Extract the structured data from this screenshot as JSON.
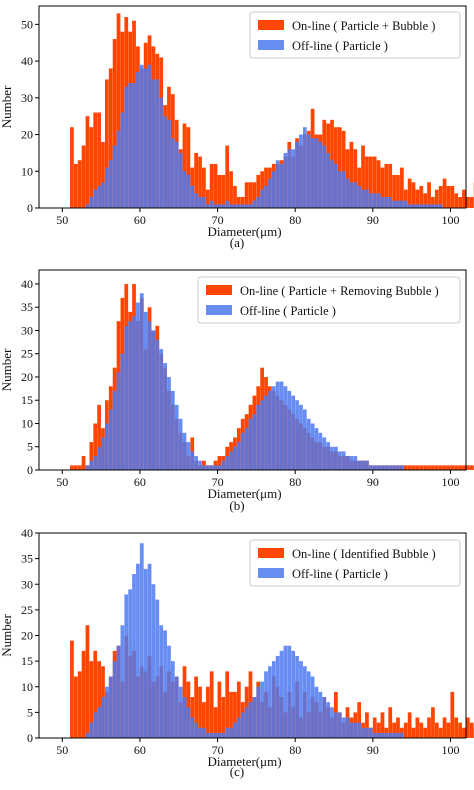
{
  "colors": {
    "online": "#ff4500",
    "offline": "#4d79f0",
    "offline_alpha": 0.85
  },
  "chart_data": [
    {
      "type": "bar",
      "caption": "(a)",
      "xlabel": "Diameter(μm)",
      "ylabel": "Number",
      "xlim": [
        47,
        102
      ],
      "ylim": [
        0,
        55
      ],
      "xticks": [
        50,
        60,
        70,
        80,
        90,
        100
      ],
      "yticks": [
        0,
        10,
        20,
        30,
        40,
        50
      ],
      "bin_start": 51.0,
      "bin_width": 0.5,
      "legend_position": "top-right",
      "series": [
        {
          "name": "On-line ( Particle + Bubble )",
          "color": "#ff4500",
          "values": [
            22,
            12,
            13,
            17,
            25,
            22,
            26,
            26,
            18,
            35,
            38,
            46,
            53,
            48,
            52,
            48,
            51,
            44,
            38,
            45,
            47,
            44,
            42,
            41,
            28,
            33,
            31,
            24,
            16,
            23,
            22,
            11,
            15,
            14,
            11,
            5,
            12,
            12,
            9,
            9,
            17,
            10,
            6,
            3,
            3,
            7,
            7,
            7,
            9,
            10,
            11,
            11,
            12,
            12,
            13,
            14,
            18,
            14,
            19,
            17,
            20,
            21,
            27,
            20,
            20,
            24,
            23,
            24,
            22,
            22,
            21,
            16,
            18,
            16,
            11,
            17,
            14,
            14,
            14,
            13,
            11,
            12,
            12,
            9,
            9,
            11,
            5,
            8,
            7,
            5,
            6,
            4,
            7,
            3,
            5,
            6,
            8,
            6,
            6,
            4,
            3,
            5,
            3,
            3,
            7,
            3,
            3,
            7,
            3,
            3
          ]
        },
        {
          "name": "Off-line ( Particle )",
          "color": "#4d79f0",
          "values": [
            0,
            0,
            0,
            0,
            1,
            3,
            5,
            6,
            7,
            11,
            13,
            17,
            21,
            26,
            33,
            34,
            34,
            37,
            39,
            38,
            39,
            35,
            35,
            30,
            25,
            24,
            19,
            18,
            15,
            10,
            9,
            6,
            4,
            3,
            3,
            1,
            2,
            1,
            1,
            1,
            2,
            1,
            1,
            1,
            1,
            1,
            1,
            2,
            3,
            5,
            6,
            8,
            10,
            13,
            12,
            15,
            16,
            16,
            18,
            20,
            22,
            20,
            19,
            19,
            18,
            17,
            15,
            13,
            12,
            10,
            10,
            8,
            7,
            7,
            6,
            5,
            5,
            4,
            4,
            4,
            3,
            3,
            3,
            2,
            2,
            2,
            2,
            1,
            1,
            1,
            1,
            1,
            1,
            1,
            1,
            1,
            0,
            0,
            0,
            0,
            0,
            0,
            0,
            0,
            0,
            0,
            0,
            0,
            0,
            0
          ]
        }
      ]
    },
    {
      "type": "bar",
      "caption": "(b)",
      "xlabel": "Diameter(μm)",
      "ylabel": "Number",
      "xlim": [
        47,
        102
      ],
      "ylim": [
        0,
        43
      ],
      "xticks": [
        50,
        60,
        70,
        80,
        90,
        100
      ],
      "yticks": [
        0,
        5,
        10,
        15,
        20,
        25,
        30,
        35,
        40
      ],
      "bin_start": 51.0,
      "bin_width": 0.5,
      "legend_position": "top-right",
      "series": [
        {
          "name": "On-line ( Particle + Removing Bubble )",
          "color": "#ff4500",
          "values": [
            1,
            1,
            1,
            3,
            1,
            6,
            10,
            14,
            9,
            15,
            18,
            22,
            32,
            37,
            40,
            34,
            40,
            32,
            37,
            26,
            35,
            30,
            31,
            25,
            22,
            17,
            14,
            11,
            8,
            6,
            3,
            7,
            2,
            1,
            2,
            1,
            1,
            2,
            3,
            3,
            5,
            6,
            7,
            9,
            11,
            12,
            14,
            16,
            18,
            22,
            20,
            18,
            17,
            16,
            15,
            14,
            13,
            12,
            11,
            10,
            9,
            8,
            7,
            6,
            6,
            5,
            5,
            4,
            4,
            3,
            3,
            3,
            2,
            2,
            2,
            2,
            2,
            1,
            1,
            1,
            1,
            1,
            1,
            1,
            1,
            1,
            1,
            1,
            1,
            1,
            1,
            1,
            1,
            1,
            1,
            1,
            1,
            1,
            1,
            1,
            1,
            1,
            1,
            1,
            1,
            1,
            1,
            1,
            1,
            1
          ]
        },
        {
          "name": "Off-line ( Particle )",
          "color": "#4d79f0",
          "values": [
            0,
            0,
            0,
            0,
            1,
            2,
            3,
            5,
            7,
            10,
            13,
            17,
            21,
            25,
            31,
            32,
            33,
            36,
            38,
            34,
            32,
            30,
            28,
            26,
            23,
            20,
            17,
            14,
            11,
            8,
            6,
            4,
            3,
            2,
            1,
            1,
            1,
            1,
            1,
            2,
            3,
            4,
            5,
            6,
            8,
            9,
            11,
            12,
            14,
            15,
            16,
            17,
            18,
            19,
            19,
            18,
            17,
            16,
            15,
            14,
            13,
            11,
            10,
            9,
            8,
            7,
            6,
            5,
            5,
            4,
            4,
            3,
            3,
            3,
            2,
            2,
            2,
            1,
            1,
            1,
            1,
            1,
            1,
            1,
            1,
            1,
            0,
            0,
            0,
            0,
            0,
            0,
            0,
            0,
            0,
            0,
            0,
            0,
            0,
            0,
            0,
            0,
            0,
            0,
            0,
            0,
            0,
            0,
            0,
            0
          ]
        }
      ]
    },
    {
      "type": "bar",
      "caption": "(c)",
      "xlabel": "Diameter(μm)",
      "ylabel": "Number",
      "xlim": [
        47,
        102
      ],
      "ylim": [
        0,
        40
      ],
      "xticks": [
        50,
        60,
        70,
        80,
        90,
        100
      ],
      "yticks": [
        0,
        5,
        10,
        15,
        20,
        25,
        30,
        35,
        40
      ],
      "bin_start": 51.0,
      "bin_width": 0.5,
      "legend_position": "top-right",
      "series": [
        {
          "name": "On-line ( Identified Bubble )",
          "color": "#ff4500",
          "values": [
            19,
            12,
            13,
            17,
            22,
            15,
            17,
            15,
            14,
            9,
            12,
            17,
            18,
            11,
            20,
            16,
            17,
            12,
            14,
            13,
            16,
            11,
            12,
            14,
            9,
            13,
            11,
            12,
            7,
            14,
            11,
            8,
            12,
            10,
            7,
            10,
            13,
            6,
            11,
            8,
            13,
            9,
            9,
            11,
            7,
            10,
            13,
            8,
            11,
            7,
            9,
            6,
            12,
            10,
            8,
            5,
            9,
            6,
            11,
            4,
            9,
            5,
            8,
            7,
            5,
            8,
            6,
            4,
            9,
            5,
            3,
            6,
            4,
            5,
            7,
            3,
            5,
            2,
            4,
            3,
            5,
            2,
            6,
            3,
            4,
            2,
            3,
            5,
            2,
            4,
            3,
            2,
            4,
            6,
            3,
            2,
            4,
            3,
            9,
            4,
            3,
            2,
            4,
            3,
            2,
            2,
            1,
            3,
            2,
            1
          ]
        },
        {
          "name": "Off-line ( Particle )",
          "color": "#4d79f0",
          "values": [
            0,
            0,
            0,
            0,
            1,
            3,
            5,
            6,
            8,
            10,
            12,
            15,
            18,
            22,
            28,
            29,
            32,
            34,
            38,
            33,
            34,
            30,
            27,
            22,
            21,
            18,
            15,
            12,
            10,
            8,
            6,
            4,
            3,
            2,
            2,
            1,
            1,
            1,
            1,
            1,
            2,
            2,
            3,
            4,
            5,
            6,
            7,
            8,
            10,
            11,
            13,
            14,
            15,
            16,
            17,
            18,
            18,
            17,
            16,
            15,
            14,
            13,
            12,
            10,
            9,
            8,
            7,
            6,
            5,
            5,
            4,
            4,
            3,
            3,
            3,
            2,
            2,
            2,
            1,
            1,
            1,
            1,
            1,
            1,
            1,
            1,
            0,
            0,
            0,
            0,
            0,
            0,
            0,
            0,
            0,
            0,
            0,
            0,
            0,
            0,
            0,
            0,
            0,
            0,
            0,
            0,
            0,
            0,
            0,
            0
          ]
        }
      ]
    }
  ]
}
